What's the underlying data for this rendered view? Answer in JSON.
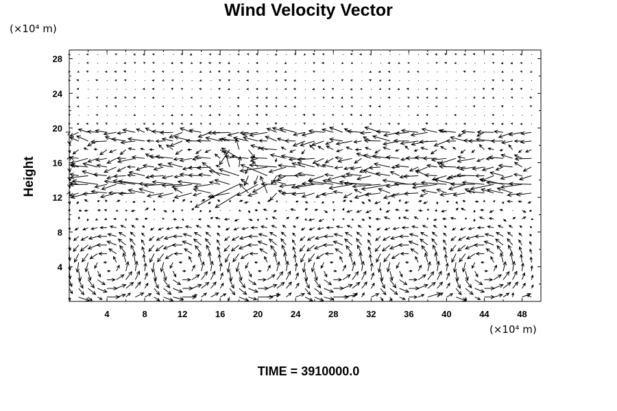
{
  "header": {
    "title": "Wind Velocity Vector"
  },
  "footer": {
    "time_label": "TIME = 3910000.0"
  },
  "chart_data": {
    "type": "vector-field",
    "title": "Wind Velocity Vector",
    "ylabel": "Height",
    "xlabel": "",
    "x_unit": "(×10⁴ m)",
    "y_unit": "(×10⁴ m)",
    "xlim": [
      0,
      50
    ],
    "ylim": [
      0,
      29
    ],
    "x_ticks": [
      4,
      8,
      12,
      16,
      20,
      24,
      28,
      32,
      36,
      40,
      44,
      48
    ],
    "y_ticks": [
      4,
      8,
      12,
      16,
      20,
      24,
      28
    ],
    "x_tick_labels": [
      "4",
      "8",
      "12",
      "16",
      "20",
      "24",
      "28",
      "32",
      "36",
      "40",
      "44",
      "48"
    ],
    "y_tick_labels": [
      "4",
      "8",
      "12",
      "16",
      "20",
      "24",
      "28"
    ],
    "grid": false,
    "structure": {
      "upper_jet_heights": [
        19,
        16,
        14,
        13
      ],
      "convection_cell_centers_x": [
        4,
        12,
        20,
        28,
        36,
        44
      ],
      "convection_top": 8
    },
    "colors": {
      "arrow": "#000000",
      "axis": "#000000"
    }
  }
}
